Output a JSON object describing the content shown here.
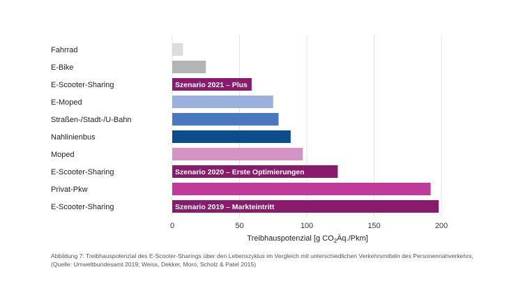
{
  "chart_data": {
    "type": "bar",
    "orientation": "horizontal",
    "categories": [
      "Fahrrad",
      "E-Bike",
      "E-Scooter-Sharing",
      "E-Moped",
      "Straßen-/Stadt-/U-Bahn",
      "Nahlinienbus",
      "Moped",
      "E-Scooter-Sharing",
      "Privat-Pkw",
      "E-Scooter-Sharing"
    ],
    "values": [
      8,
      25,
      59,
      75,
      79,
      88,
      97,
      123,
      192,
      198
    ],
    "bar_labels": [
      "",
      "",
      "Szenario 2021 – Plus",
      "",
      "",
      "",
      "",
      "Szenario 2020 – Erste Optimierungen",
      "",
      "Szenario 2019 – Markteintritt"
    ],
    "colors": [
      "#dcdcdc",
      "#b2b4b6",
      "#8a1a6b",
      "#9bb0dc",
      "#4a78c0",
      "#0a4c8c",
      "#d394c4",
      "#8a1a6b",
      "#c03a9a",
      "#8a1a6b"
    ],
    "xlim": [
      0,
      200
    ],
    "xticks": [
      0,
      50,
      100,
      150,
      200
    ],
    "xlabel_main": "Treibhauspotenzial [g CO",
    "xlabel_sub": "2",
    "xlabel_end": "Äq./Pkm]",
    "grid": true
  },
  "caption": {
    "line1": "Abbildung 7: Treibhauspotenzial des E-Scooter-Sharings über den Lebenszyklus im Vergleich mit unterschiedlichen Verkehrsmitteln des Personennahverkehrs,",
    "line2": "(Quelle: Umweltbundesamt 2019; Weiss, Dekker, Moro, Scholz & Patel 2015)"
  }
}
